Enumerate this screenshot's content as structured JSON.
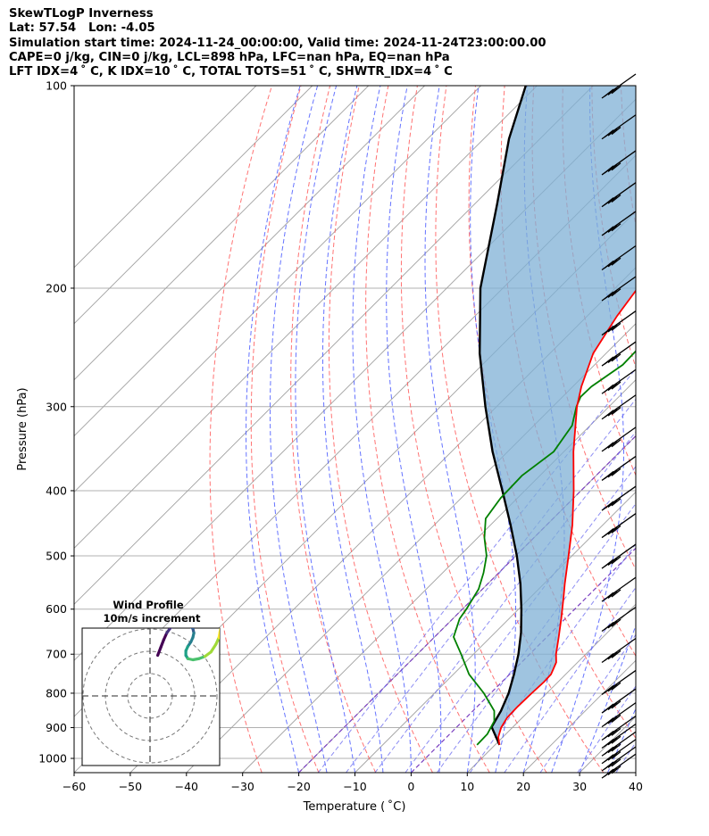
{
  "header": {
    "line1": "SkewTLogP Inverness",
    "line2": "Lat: 57.54   Lon: -4.05",
    "line3": "Simulation start time: 2024-11-24_00:00:00, Valid time: 2024-11-24T23:00:00.00",
    "line4": "CAPE=0 j/kg, CIN=0 j/kg, LCL=898 hPa, LFC=nan hPa, EQ=nan hPa",
    "line5": "LFT IDX=4 ˚ C, K IDX=10 ˚ C, TOTAL TOTS=51 ˚ C, SHWTR_IDX=4 ˚ C"
  },
  "colors": {
    "temperature": "#ff0000",
    "dewpoint": "#008000",
    "parcel": "#000000",
    "cape_fill": "#7fb0d5",
    "dry_adiabat": "#ff5a5a",
    "moist_adiabat": "#4a5aff",
    "mixing_ratio": "#7070f0",
    "isotherm": "#a0a0a0",
    "isotherm_zero": "#7a3fc0"
  },
  "chart_data": {
    "type": "line",
    "xlabel": "Temperature ( ˚C)",
    "ylabel": "Pressure (hPa)",
    "xlim": [
      -60,
      40
    ],
    "ylim": [
      1050,
      100
    ],
    "yscale": "log",
    "x_ticks": [
      -60,
      -50,
      -40,
      -30,
      -20,
      -10,
      0,
      10,
      20,
      30,
      40
    ],
    "x_tick_labels": [
      "−60",
      "−50",
      "−40",
      "−30",
      "−20",
      "−10",
      "0",
      "10",
      "20",
      "30",
      "40"
    ],
    "y_ticks": [
      100,
      200,
      300,
      400,
      500,
      600,
      700,
      800,
      900,
      1000
    ],
    "y_tick_labels": [
      "100",
      "200",
      "300",
      "400",
      "500",
      "600",
      "700",
      "800",
      "900",
      "1000"
    ],
    "grid": true,
    "series": [
      {
        "key": "temperature",
        "points": [
          [
            955,
            10.8
          ],
          [
            930,
            9.2
          ],
          [
            900,
            8.0
          ],
          [
            870,
            7.3
          ],
          [
            840,
            7.2
          ],
          [
            800,
            7.3
          ],
          [
            770,
            7.5
          ],
          [
            750,
            7.4
          ],
          [
            720,
            6.2
          ],
          [
            700,
            4.7
          ],
          [
            660,
            2.1
          ],
          [
            620,
            -0.7
          ],
          [
            580,
            -3.8
          ],
          [
            550,
            -6.3
          ],
          [
            500,
            -10.6
          ],
          [
            450,
            -15.4
          ],
          [
            400,
            -21.3
          ],
          [
            350,
            -28.3
          ],
          [
            300,
            -35.7
          ],
          [
            280,
            -38.5
          ],
          [
            250,
            -42.3
          ],
          [
            220,
            -44.7
          ],
          [
            200,
            -46.0
          ],
          [
            180,
            -47.2
          ],
          [
            160,
            -48.8
          ],
          [
            140,
            -51.3
          ],
          [
            130,
            -52.5
          ],
          [
            120,
            -54.0
          ],
          [
            110,
            -55.5
          ],
          [
            100,
            -57.0
          ]
        ]
      },
      {
        "key": "dewpoint",
        "points": [
          [
            955,
            6.8
          ],
          [
            920,
            6.7
          ],
          [
            880,
            5.6
          ],
          [
            850,
            3.8
          ],
          [
            800,
            -1.2
          ],
          [
            750,
            -7.2
          ],
          [
            700,
            -12.2
          ],
          [
            660,
            -16.6
          ],
          [
            620,
            -18.8
          ],
          [
            600,
            -19.3
          ],
          [
            560,
            -20.7
          ],
          [
            530,
            -22.7
          ],
          [
            500,
            -25.2
          ],
          [
            470,
            -28.8
          ],
          [
            440,
            -32.0
          ],
          [
            410,
            -33.0
          ],
          [
            380,
            -33.2
          ],
          [
            350,
            -31.8
          ],
          [
            320,
            -33.2
          ],
          [
            300,
            -35.8
          ],
          [
            290,
            -36.8
          ],
          [
            280,
            -36.7
          ],
          [
            260,
            -35.0
          ],
          [
            240,
            -35.2
          ],
          [
            220,
            -35.7
          ],
          [
            200,
            -38.0
          ],
          [
            180,
            -40.6
          ],
          [
            170,
            -41.8
          ],
          [
            160,
            -40.5
          ],
          [
            140,
            -40.0
          ],
          [
            120,
            -39.7
          ],
          [
            110,
            -39.6
          ],
          [
            100,
            -39.5
          ]
        ]
      },
      {
        "key": "parcel",
        "points": [
          [
            955,
            10.8
          ],
          [
            898,
            6.2
          ],
          [
            850,
            5.0
          ],
          [
            800,
            3.2
          ],
          [
            750,
            0.8
          ],
          [
            700,
            -2.0
          ],
          [
            650,
            -5.4
          ],
          [
            600,
            -9.5
          ],
          [
            550,
            -14.2
          ],
          [
            500,
            -19.8
          ],
          [
            450,
            -26.4
          ],
          [
            400,
            -34.0
          ],
          [
            350,
            -42.7
          ],
          [
            300,
            -52.0
          ],
          [
            250,
            -62.5
          ],
          [
            200,
            -74.0
          ],
          [
            150,
            -86.0
          ],
          [
            120,
            -95.5
          ],
          [
            100,
            -102.0
          ]
        ]
      }
    ],
    "wind_barbs_pressure": [
      100,
      115,
      130,
      145,
      160,
      180,
      200,
      225,
      250,
      275,
      300,
      335,
      370,
      410,
      450,
      500,
      560,
      620,
      690,
      770,
      820,
      860,
      900,
      925,
      950,
      975,
      1000,
      1025
    ]
  },
  "inset": {
    "title": "Wind Profile",
    "subtitle": "10m/s increment",
    "hodograph": [
      [
        -0.3,
        0.6
      ],
      [
        0.0,
        1.3
      ],
      [
        0.3,
        2.0
      ],
      [
        0.6,
        2.6
      ],
      [
        1.0,
        3.1
      ],
      [
        1.5,
        3.4
      ],
      [
        2.1,
        3.5
      ],
      [
        2.8,
        3.3
      ],
      [
        3.2,
        3.0
      ],
      [
        3.3,
        2.6
      ],
      [
        3.2,
        2.2
      ],
      [
        3.0,
        1.8
      ],
      [
        2.7,
        1.4
      ],
      [
        2.5,
        1.0
      ],
      [
        2.5,
        0.6
      ],
      [
        2.7,
        0.3
      ],
      [
        3.2,
        0.2
      ],
      [
        3.8,
        0.3
      ],
      [
        4.4,
        0.5
      ],
      [
        5.0,
        0.9
      ],
      [
        5.5,
        1.6
      ],
      [
        5.8,
        2.2
      ],
      [
        5.9,
        2.7
      ],
      [
        6.0,
        3.1
      ],
      [
        6.1,
        3.5
      ]
    ]
  }
}
